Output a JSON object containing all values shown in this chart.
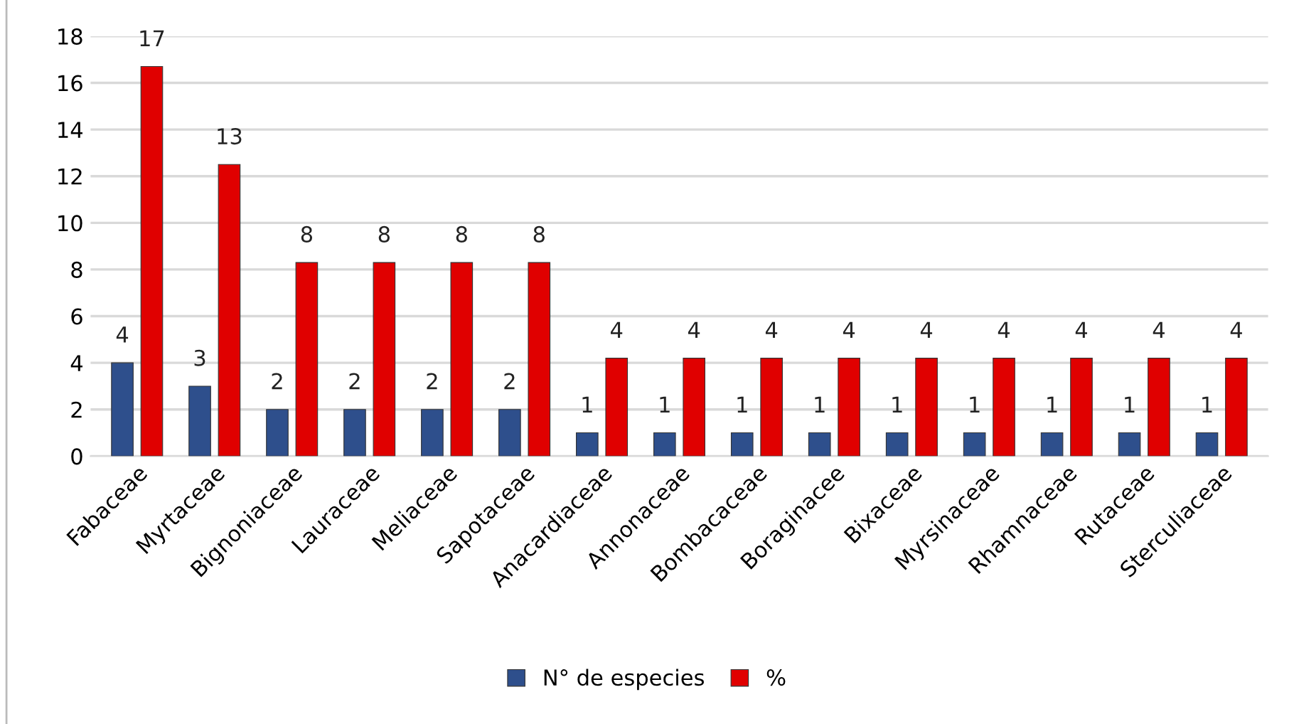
{
  "chart_data": {
    "type": "bar",
    "categories": [
      "Fabaceae",
      "Myrtaceae",
      "Bignoniaceae",
      "Lauraceae",
      "Meliaceae",
      "Sapotaceae",
      "Anacardiaceae",
      "Annonaceae",
      "Bombacaceae",
      "Boraginacee",
      "Bixaceae",
      "Myrsinaceae",
      "Rhamnaceae",
      "Rutaceae",
      "Sterculiaceae"
    ],
    "series": [
      {
        "name": "N° de especies",
        "color": "#2e4f8c",
        "values": [
          4,
          3,
          2,
          2,
          2,
          2,
          1,
          1,
          1,
          1,
          1,
          1,
          1,
          1,
          1
        ],
        "value_labels": [
          "4",
          "3",
          "2",
          "2",
          "2",
          "2",
          "1",
          "1",
          "1",
          "1",
          "1",
          "1",
          "1",
          "1",
          "1"
        ]
      },
      {
        "name": "%",
        "color": "#e00000",
        "values": [
          16.7,
          12.5,
          8.3,
          8.3,
          8.3,
          8.3,
          4.2,
          4.2,
          4.2,
          4.2,
          4.2,
          4.2,
          4.2,
          4.2,
          4.2
        ],
        "value_labels": [
          "17",
          "13",
          "8",
          "8",
          "8",
          "8",
          "4",
          "4",
          "4",
          "4",
          "4",
          "4",
          "4",
          "4",
          "4"
        ]
      }
    ],
    "ylim": [
      0,
      18
    ],
    "yticks": [
      0,
      2,
      4,
      6,
      8,
      10,
      12,
      14,
      16,
      18
    ],
    "grid": "y",
    "legend": "bottom"
  }
}
